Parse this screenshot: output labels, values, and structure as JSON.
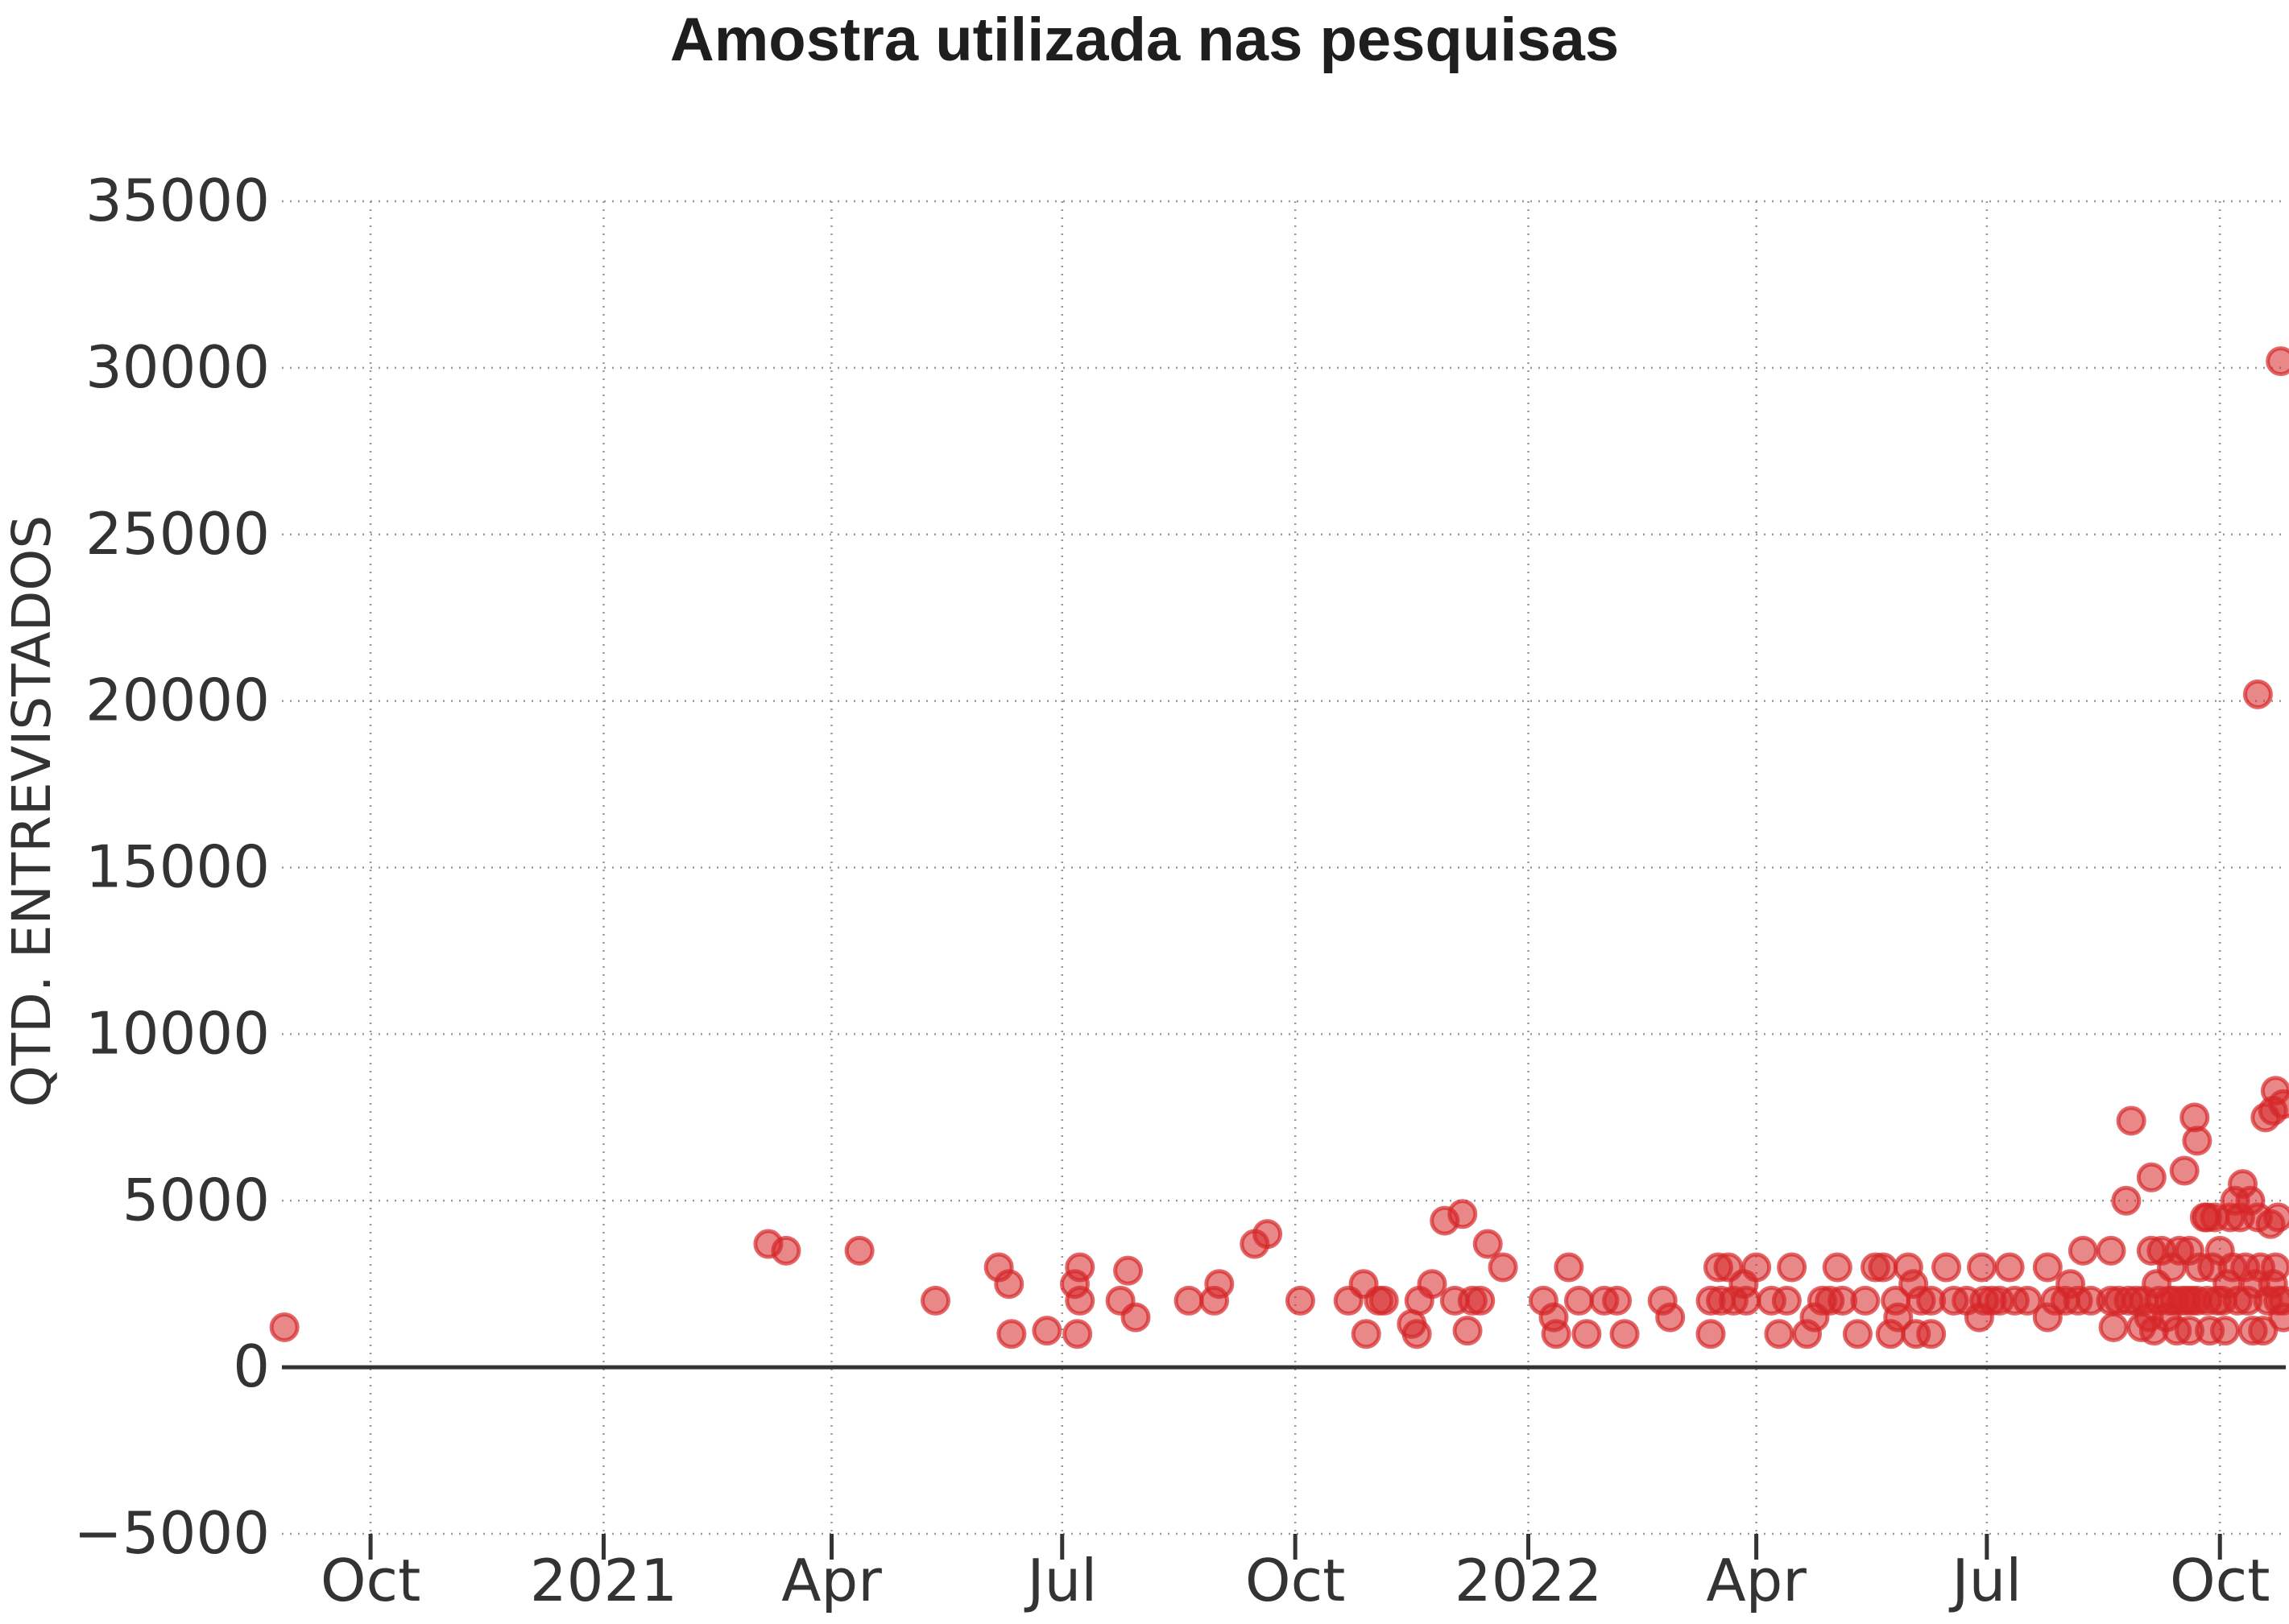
{
  "chart_data": {
    "type": "scatter",
    "title": "Amostra utilizada nas pesquisas",
    "ylabel": "QTD. ENTREVISTADOS",
    "xlabel": "",
    "xlim": [
      "2020-08-27",
      "2022-10-27"
    ],
    "ylim": [
      -5000,
      35000
    ],
    "y_ticks": [
      -5000,
      0,
      5000,
      10000,
      15000,
      20000,
      25000,
      30000,
      35000
    ],
    "x_ticks": [
      {
        "date": "2020-10-01",
        "label": "Oct"
      },
      {
        "date": "2021-01-01",
        "label": "2021"
      },
      {
        "date": "2021-04-01",
        "label": "Apr"
      },
      {
        "date": "2021-07-01",
        "label": "Jul"
      },
      {
        "date": "2021-10-01",
        "label": "Oct"
      },
      {
        "date": "2022-01-01",
        "label": "2022"
      },
      {
        "date": "2022-04-01",
        "label": "Apr"
      },
      {
        "date": "2022-07-01",
        "label": "Jul"
      },
      {
        "date": "2022-10-01",
        "label": "Oct"
      }
    ],
    "grid": true,
    "legend": "none",
    "colors": {
      "marker": "#d62728",
      "zero_line": "#333333",
      "grid": "#999999",
      "text": "#333333",
      "title": "#1e1e1e"
    },
    "points": [
      [
        "2020-08-28",
        1200
      ],
      [
        "2021-03-07",
        3700
      ],
      [
        "2021-03-14",
        3500
      ],
      [
        "2021-04-12",
        3500
      ],
      [
        "2021-05-12",
        2000
      ],
      [
        "2021-06-06",
        3000
      ],
      [
        "2021-06-10",
        2500
      ],
      [
        "2021-06-11",
        1000
      ],
      [
        "2021-06-25",
        1100
      ],
      [
        "2021-07-06",
        2500
      ],
      [
        "2021-07-07",
        1000
      ],
      [
        "2021-07-08",
        2000
      ],
      [
        "2021-07-08",
        3000
      ],
      [
        "2021-07-24",
        2000
      ],
      [
        "2021-07-27",
        2900
      ],
      [
        "2021-07-30",
        1500
      ],
      [
        "2021-08-20",
        2000
      ],
      [
        "2021-08-30",
        2000
      ],
      [
        "2021-09-01",
        2500
      ],
      [
        "2021-09-15",
        3700
      ],
      [
        "2021-09-20",
        4000
      ],
      [
        "2021-10-03",
        2000
      ],
      [
        "2021-10-22",
        2000
      ],
      [
        "2021-10-28",
        2500
      ],
      [
        "2021-10-29",
        1000
      ],
      [
        "2021-11-03",
        2000
      ],
      [
        "2021-11-05",
        2000
      ],
      [
        "2021-11-16",
        1300
      ],
      [
        "2021-11-18",
        1000
      ],
      [
        "2021-11-19",
        2000
      ],
      [
        "2021-11-24",
        2500
      ],
      [
        "2021-11-29",
        4400
      ],
      [
        "2021-12-03",
        2000
      ],
      [
        "2021-12-06",
        4600
      ],
      [
        "2021-12-08",
        1100
      ],
      [
        "2021-12-10",
        2000
      ],
      [
        "2021-12-13",
        2000
      ],
      [
        "2021-12-16",
        3700
      ],
      [
        "2021-12-22",
        3000
      ],
      [
        "2022-01-07",
        2000
      ],
      [
        "2022-01-11",
        1500
      ],
      [
        "2022-01-12",
        1000
      ],
      [
        "2022-01-17",
        3000
      ],
      [
        "2022-01-21",
        2000
      ],
      [
        "2022-01-24",
        1000
      ],
      [
        "2022-01-31",
        2000
      ],
      [
        "2022-02-05",
        2000
      ],
      [
        "2022-02-08",
        1000
      ],
      [
        "2022-02-23",
        2000
      ],
      [
        "2022-02-26",
        1500
      ],
      [
        "2022-03-14",
        2000
      ],
      [
        "2022-03-14",
        1000
      ],
      [
        "2022-03-17",
        3000
      ],
      [
        "2022-03-18",
        2000
      ],
      [
        "2022-03-21",
        3000
      ],
      [
        "2022-03-23",
        2000
      ],
      [
        "2022-03-27",
        2500
      ],
      [
        "2022-03-28",
        2000
      ],
      [
        "2022-04-01",
        3000
      ],
      [
        "2022-04-07",
        2000
      ],
      [
        "2022-04-10",
        1000
      ],
      [
        "2022-04-13",
        2000
      ],
      [
        "2022-04-15",
        3000
      ],
      [
        "2022-04-21",
        1000
      ],
      [
        "2022-04-24",
        1500
      ],
      [
        "2022-04-27",
        2000
      ],
      [
        "2022-04-30",
        2000
      ],
      [
        "2022-05-03",
        3000
      ],
      [
        "2022-05-05",
        2000
      ],
      [
        "2022-05-11",
        1000
      ],
      [
        "2022-05-14",
        2000
      ],
      [
        "2022-05-18",
        3000
      ],
      [
        "2022-05-21",
        3000
      ],
      [
        "2022-05-24",
        1000
      ],
      [
        "2022-05-26",
        2000
      ],
      [
        "2022-05-27",
        1500
      ],
      [
        "2022-05-31",
        3000
      ],
      [
        "2022-06-02",
        2500
      ],
      [
        "2022-06-03",
        1000
      ],
      [
        "2022-06-05",
        2000
      ],
      [
        "2022-06-09",
        1000
      ],
      [
        "2022-06-09",
        2000
      ],
      [
        "2022-06-15",
        3000
      ],
      [
        "2022-06-18",
        2000
      ],
      [
        "2022-06-23",
        2000
      ],
      [
        "2022-06-28",
        1500
      ],
      [
        "2022-06-30",
        2000
      ],
      [
        "2022-06-29",
        3000
      ],
      [
        "2022-07-03",
        2000
      ],
      [
        "2022-07-06",
        2000
      ],
      [
        "2022-07-10",
        3000
      ],
      [
        "2022-07-12",
        2000
      ],
      [
        "2022-07-17",
        2000
      ],
      [
        "2022-07-25",
        1500
      ],
      [
        "2022-07-25",
        3000
      ],
      [
        "2022-07-28",
        2000
      ],
      [
        "2022-08-01",
        2000
      ],
      [
        "2022-08-03",
        2500
      ],
      [
        "2022-08-06",
        2000
      ],
      [
        "2022-08-08",
        3500
      ],
      [
        "2022-08-11",
        2000
      ],
      [
        "2022-08-19",
        3500
      ],
      [
        "2022-08-19",
        2000
      ],
      [
        "2022-08-20",
        1200
      ],
      [
        "2022-08-22",
        2000
      ],
      [
        "2022-08-25",
        5000
      ],
      [
        "2022-08-26",
        2000
      ],
      [
        "2022-08-27",
        7400
      ],
      [
        "2022-08-29",
        2000
      ],
      [
        "2022-08-31",
        1200
      ],
      [
        "2022-09-01",
        2000
      ],
      [
        "2022-09-03",
        1500
      ],
      [
        "2022-09-04",
        3500
      ],
      [
        "2022-09-04",
        5700
      ],
      [
        "2022-09-05",
        1100
      ],
      [
        "2022-09-06",
        2500
      ],
      [
        "2022-09-07",
        2000
      ],
      [
        "2022-09-08",
        3500
      ],
      [
        "2022-09-10",
        1500
      ],
      [
        "2022-09-11",
        2000
      ],
      [
        "2022-09-12",
        3000
      ],
      [
        "2022-09-13",
        2000
      ],
      [
        "2022-09-14",
        1100
      ],
      [
        "2022-09-15",
        3500
      ],
      [
        "2022-09-16",
        2000
      ],
      [
        "2022-09-17",
        5900
      ],
      [
        "2022-09-18",
        2000
      ],
      [
        "2022-09-19",
        1100
      ],
      [
        "2022-09-19",
        3500
      ],
      [
        "2022-09-20",
        2000
      ],
      [
        "2022-09-21",
        7500
      ],
      [
        "2022-09-22",
        6800
      ],
      [
        "2022-09-22",
        2000
      ],
      [
        "2022-09-23",
        3000
      ],
      [
        "2022-09-25",
        4500
      ],
      [
        "2022-09-26",
        2000
      ],
      [
        "2022-09-26",
        4500
      ],
      [
        "2022-09-27",
        1100
      ],
      [
        "2022-09-28",
        3000
      ],
      [
        "2022-09-29",
        4500
      ],
      [
        "2022-09-30",
        2000
      ],
      [
        "2022-10-01",
        3500
      ],
      [
        "2022-10-02",
        2000
      ],
      [
        "2022-10-03",
        1100
      ],
      [
        "2022-10-04",
        2500
      ],
      [
        "2022-10-05",
        4500
      ],
      [
        "2022-10-06",
        3000
      ],
      [
        "2022-10-07",
        5000
      ],
      [
        "2022-10-08",
        2000
      ],
      [
        "2022-10-09",
        4500
      ],
      [
        "2022-10-10",
        5500
      ],
      [
        "2022-10-11",
        3000
      ],
      [
        "2022-10-12",
        2000
      ],
      [
        "2022-10-13",
        5000
      ],
      [
        "2022-10-14",
        1100
      ],
      [
        "2022-10-15",
        2500
      ],
      [
        "2022-10-16",
        4500
      ],
      [
        "2022-10-16",
        20200
      ],
      [
        "2022-10-17",
        3000
      ],
      [
        "2022-10-18",
        1100
      ],
      [
        "2022-10-19",
        7500
      ],
      [
        "2022-10-20",
        2000
      ],
      [
        "2022-10-21",
        4300
      ],
      [
        "2022-10-22",
        7700
      ],
      [
        "2022-10-22",
        2500
      ],
      [
        "2022-10-23",
        8300
      ],
      [
        "2022-10-23",
        3000
      ],
      [
        "2022-10-24",
        4500
      ],
      [
        "2022-10-24",
        2000
      ],
      [
        "2022-10-25",
        30200
      ],
      [
        "2022-10-26",
        7900
      ],
      [
        "2022-10-26",
        1500
      ],
      [
        "2022-10-26",
        2000
      ]
    ]
  }
}
